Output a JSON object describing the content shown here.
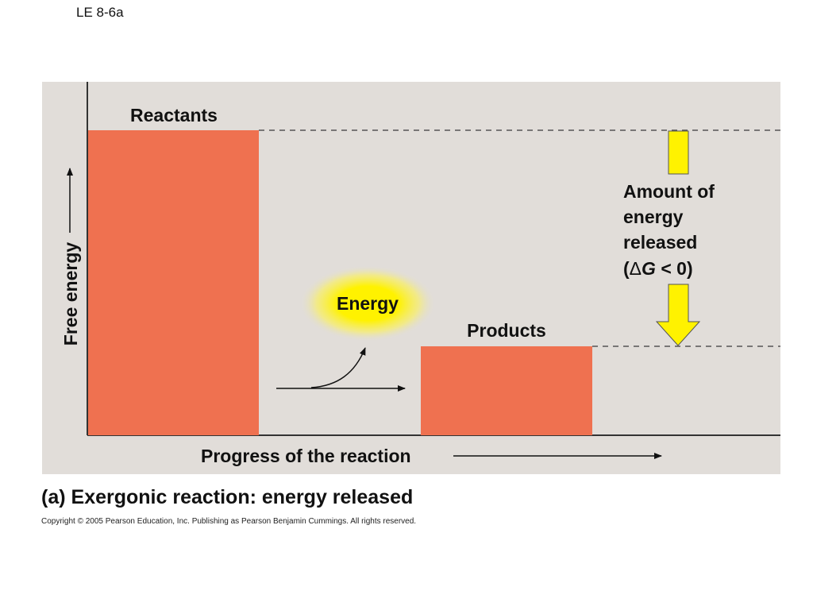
{
  "slide_label": "LE 8-6a",
  "diagram": {
    "y_axis_label": "Free energy",
    "x_axis_label": "Progress of the reaction",
    "reactants_label": "Reactants",
    "products_label": "Products",
    "energy_label": "Energy",
    "delta_g_label": {
      "line1": "Amount of",
      "line2": "energy",
      "line3": "released",
      "open_paren": "(",
      "delta": "Δ",
      "g": "G",
      "rest": " < 0)"
    }
  },
  "caption": {
    "prefix": "(a)",
    "text": "Exergonic reaction: energy released"
  },
  "copyright": "Copyright © 2005 Pearson Education, Inc. Publishing as Pearson Benjamin Cummings. All rights reserved.",
  "colors": {
    "panel_bg": "#e1ddd9",
    "bar_fill": "#ef7150",
    "arrow_fill": "#fff200",
    "glow_center": "#fff200"
  }
}
